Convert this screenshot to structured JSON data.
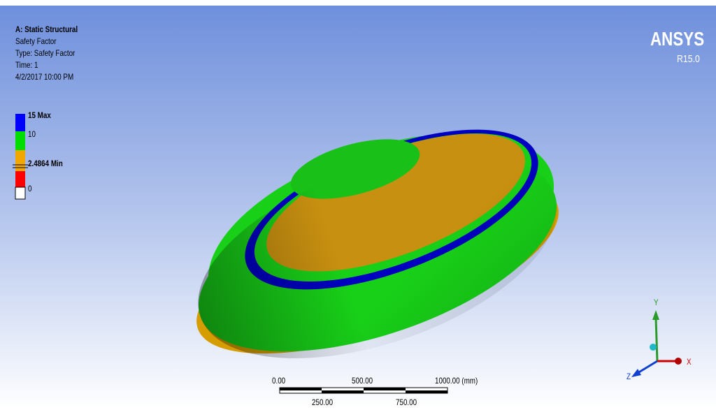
{
  "header": {
    "title": "A: Static Structural",
    "lines": [
      "Safety Factor",
      "Type: Safety Factor",
      "Time: 1",
      "4/2/2017 10:00 PM"
    ]
  },
  "legend": {
    "entries": [
      {
        "label": "15 Max",
        "color": "#0000ff"
      },
      {
        "label": "10",
        "color": "#00dd00"
      },
      {
        "label": "2.4864 Min",
        "color": "#f0a800"
      },
      {
        "label": "0",
        "color": "#ff0000"
      }
    ]
  },
  "logo": {
    "name": "ANSYS",
    "version": "R15.0"
  },
  "scale_bar": {
    "top_labels": [
      "0.00",
      "500.00",
      "1000.00 (mm)"
    ],
    "bottom_labels": [
      "250.00",
      "750.00"
    ]
  },
  "triad": {
    "x": "X",
    "y": "Y",
    "z": "Z"
  }
}
